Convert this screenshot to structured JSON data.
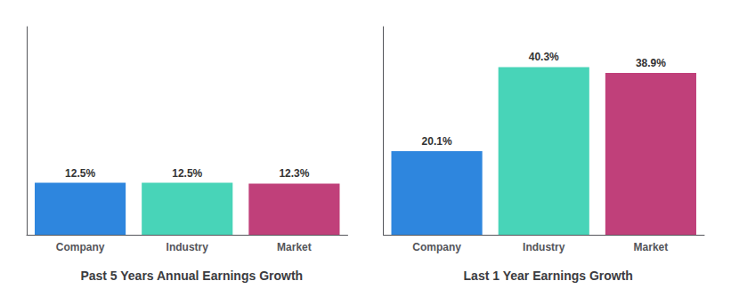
{
  "chart_data": [
    {
      "type": "bar",
      "title": "Past 5 Years Annual Earnings Growth",
      "categories": [
        "Company",
        "Industry",
        "Market"
      ],
      "values": [
        12.5,
        12.5,
        12.3
      ],
      "value_labels": [
        "12.5%",
        "12.5%",
        "12.3%"
      ],
      "colors": [
        "#2e86de",
        "#48d4b8",
        "#c0407a"
      ],
      "ylim": [
        0,
        50
      ],
      "data_labels": true,
      "tick_labels": "x",
      "grid": false
    },
    {
      "type": "bar",
      "title": "Last 1 Year Earnings Growth",
      "categories": [
        "Company",
        "Industry",
        "Market"
      ],
      "values": [
        20.1,
        40.3,
        38.9
      ],
      "value_labels": [
        "20.1%",
        "40.3%",
        "38.9%"
      ],
      "colors": [
        "#2e86de",
        "#48d4b8",
        "#c0407a"
      ],
      "ylim": [
        0,
        50
      ],
      "data_labels": true,
      "tick_labels": "x",
      "grid": false
    }
  ]
}
